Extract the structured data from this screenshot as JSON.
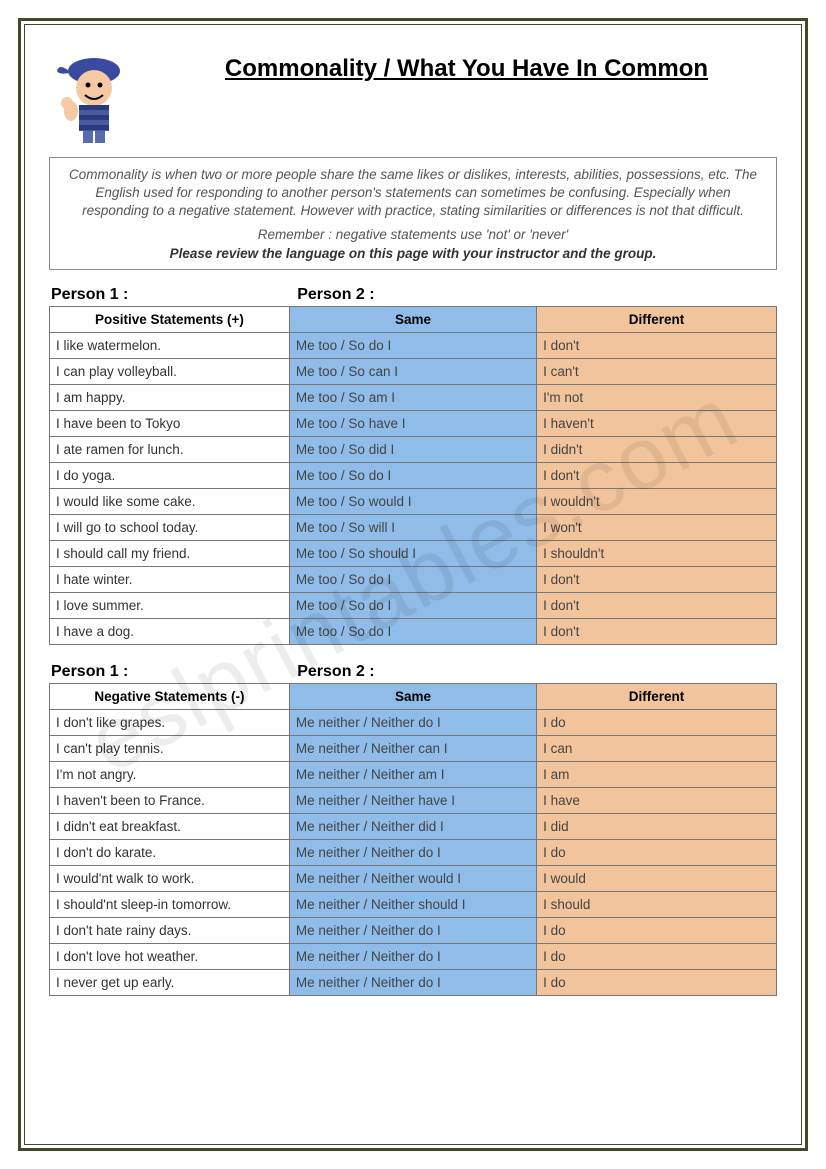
{
  "title": "Commonality / What You Have In Common",
  "intro": {
    "paragraph": "Commonality is when two or more people share the same likes or dislikes, interests, abilities, possessions, etc. The English used for responding to another person's statements can sometimes be confusing. Especially when responding to a negative statement. However with practice, stating similarities or differences is not that difficult.",
    "remember": "Remember : negative statements use 'not' or 'never'",
    "instruction": "Please review the language on this page with your instructor and the group."
  },
  "labels": {
    "person1": "Person 1 :",
    "person2": "Person 2 :",
    "same": "Same",
    "different": "Different"
  },
  "positive": {
    "header": "Positive Statements (+)",
    "rows": [
      {
        "stmt": "I like watermelon.",
        "same": "Me too / So do I",
        "diff": "I don't"
      },
      {
        "stmt": "I can play volleyball.",
        "same": "Me too / So can I",
        "diff": "I can't"
      },
      {
        "stmt": "I am happy.",
        "same": "Me too / So am I",
        "diff": "I'm not"
      },
      {
        "stmt": "I have been to Tokyo",
        "same": "Me too / So have I",
        "diff": "I haven't"
      },
      {
        "stmt": "I ate ramen for lunch.",
        "same": "Me too / So did I",
        "diff": "I didn't"
      },
      {
        "stmt": "I do yoga.",
        "same": "Me too / So do I",
        "diff": "I don't"
      },
      {
        "stmt": "I would like some cake.",
        "same": "Me too / So would I",
        "diff": "I wouldn't"
      },
      {
        "stmt": "I will go to school today.",
        "same": "Me too / So will I",
        "diff": "I won't"
      },
      {
        "stmt": "I should call my friend.",
        "same": "Me too / So should I",
        "diff": "I shouldn't"
      },
      {
        "stmt": "I hate winter.",
        "same": "Me too / So do I",
        "diff": "I don't"
      },
      {
        "stmt": "I love summer.",
        "same": "Me too / So do I",
        "diff": "I don't"
      },
      {
        "stmt": "I have a dog.",
        "same": "Me too / So do I",
        "diff": "I don't"
      }
    ]
  },
  "negative": {
    "header": "Negative Statements (-)",
    "rows": [
      {
        "stmt": "I don't like grapes.",
        "same": "Me neither / Neither do I",
        "diff": "I do"
      },
      {
        "stmt": "I can't play tennis.",
        "same": "Me neither / Neither can I",
        "diff": "I can"
      },
      {
        "stmt": "I'm not angry.",
        "same": "Me neither / Neither am I",
        "diff": "I am"
      },
      {
        "stmt": "I haven't been to France.",
        "same": "Me neither / Neither have I",
        "diff": "I have"
      },
      {
        "stmt": "I didn't eat breakfast.",
        "same": "Me neither / Neither did I",
        "diff": "I did"
      },
      {
        "stmt": "I don't do karate.",
        "same": "Me neither / Neither do I",
        "diff": "I do"
      },
      {
        "stmt": "I would'nt walk to work.",
        "same": "Me neither / Neither would I",
        "diff": "I would"
      },
      {
        "stmt": "I should'nt sleep-in tomorrow.",
        "same": "Me neither / Neither should I",
        "diff": "I should"
      },
      {
        "stmt": "I don't hate rainy days.",
        "same": "Me neither / Neither do I",
        "diff": "I do"
      },
      {
        "stmt": "I don't love hot weather.",
        "same": "Me neither / Neither do I",
        "diff": "I do"
      },
      {
        "stmt": "I never get up early.",
        "same": "Me neither / Neither do I",
        "diff": "I do"
      }
    ]
  },
  "watermark": "eslprintables.com",
  "colors": {
    "border": "#3e4a28",
    "same_bg": "#8fbce8",
    "diff_bg": "#f2c49b"
  }
}
